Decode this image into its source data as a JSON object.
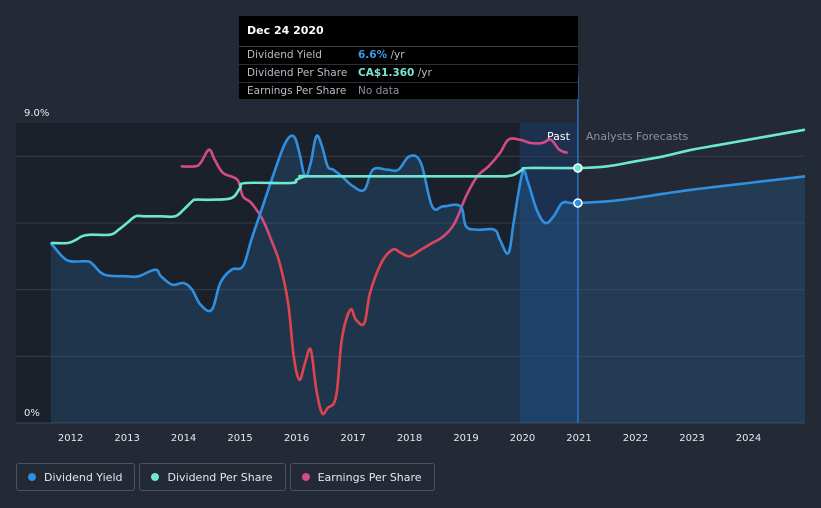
{
  "tooltip": {
    "date": "Dec 24 2020",
    "rows": [
      {
        "name": "Dividend Yield",
        "value": "6.6%",
        "unit": " /yr",
        "color": "#3b9be8"
      },
      {
        "name": "Dividend Per Share",
        "value": "CA$1.360",
        "unit": " /yr",
        "color": "#7de8d4"
      },
      {
        "name": "Earnings Per Share",
        "value": "No data",
        "unit": "",
        "color": "#8b939e"
      }
    ]
  },
  "colors": {
    "background": "#232a35",
    "yield": "#2f8fe0",
    "dps": "#6ee7cf",
    "eps": "#d24b86",
    "eps_negative": "#e0434d",
    "grid": "#343b47"
  },
  "chart_data": {
    "type": "line",
    "ylim": [
      0,
      9.0
    ],
    "ytick_labels": [
      "9.0%",
      "0%"
    ],
    "xlim": [
      2011.6,
      2025.0
    ],
    "x_tick_labels": [
      "2012",
      "2013",
      "2014",
      "2015",
      "2016",
      "2017",
      "2018",
      "2019",
      "2020",
      "2021",
      "2022",
      "2023",
      "2024"
    ],
    "segment_labels": {
      "past": "Past",
      "forecast": "Analysts Forecasts"
    },
    "forecast_start": 2020.98,
    "highlight_start": 2019.95,
    "series": [
      {
        "name": "Dividend Yield",
        "unit": "%",
        "x": [
          2011.65,
          2011.85,
          2012.0,
          2012.3,
          2012.4,
          2012.6,
          2013.0,
          2013.2,
          2013.5,
          2013.6,
          2013.8,
          2014.0,
          2014.15,
          2014.3,
          2014.5,
          2014.65,
          2014.85,
          2015.05,
          2015.2,
          2015.4,
          2015.6,
          2015.8,
          2015.95,
          2016.05,
          2016.15,
          2016.25,
          2016.35,
          2016.45,
          2016.55,
          2016.65,
          2016.8,
          2017.0,
          2017.2,
          2017.35,
          2017.6,
          2017.8,
          2018.0,
          2018.2,
          2018.4,
          2018.6,
          2018.9,
          2019.0,
          2019.2,
          2019.5,
          2019.6,
          2019.75,
          2019.85,
          2020.0,
          2020.1,
          2020.25,
          2020.4,
          2020.55,
          2020.7,
          2020.85,
          2020.98,
          2021.5,
          2022.0,
          2022.5,
          2023.0,
          2023.5,
          2024.0,
          2024.5,
          2025.0
        ],
        "values": [
          5.4,
          5.0,
          4.85,
          4.85,
          4.75,
          4.45,
          4.4,
          4.4,
          4.6,
          4.4,
          4.15,
          4.2,
          4.0,
          3.55,
          3.4,
          4.2,
          4.6,
          4.7,
          5.5,
          6.5,
          7.5,
          8.4,
          8.6,
          8.1,
          7.4,
          7.8,
          8.6,
          8.3,
          7.7,
          7.6,
          7.4,
          7.1,
          7.0,
          7.6,
          7.6,
          7.6,
          8.0,
          7.8,
          6.5,
          6.5,
          6.5,
          5.9,
          5.8,
          5.8,
          5.5,
          5.1,
          6.1,
          7.5,
          7.2,
          6.4,
          6.0,
          6.2,
          6.6,
          6.6,
          6.6,
          6.65,
          6.75,
          6.88,
          7.0,
          7.1,
          7.2,
          7.3,
          7.4
        ]
      },
      {
        "name": "Dividend Per Share",
        "unit": "%",
        "x": [
          2011.65,
          2011.95,
          2012.1,
          2012.2,
          2012.35,
          2012.7,
          2012.85,
          2013.0,
          2013.15,
          2013.3,
          2013.6,
          2013.85,
          2014.0,
          2014.15,
          2014.2,
          2014.35,
          2014.5,
          2014.85,
          2015.0,
          2015.1,
          2015.9,
          2016.0,
          2016.15,
          2016.3,
          2018.9,
          2019.6,
          2019.7,
          2019.85,
          2020.0,
          2020.1,
          2020.98,
          2021.5,
          2022.0,
          2022.5,
          2023.0,
          2023.5,
          2024.0,
          2024.5,
          2025.0
        ],
        "values": [
          5.4,
          5.4,
          5.5,
          5.6,
          5.65,
          5.65,
          5.8,
          6.0,
          6.2,
          6.2,
          6.2,
          6.2,
          6.4,
          6.65,
          6.7,
          6.7,
          6.7,
          6.75,
          7.05,
          7.2,
          7.2,
          7.3,
          7.4,
          7.4,
          7.4,
          7.4,
          7.4,
          7.45,
          7.6,
          7.65,
          7.65,
          7.7,
          7.85,
          8.0,
          8.2,
          8.35,
          8.5,
          8.65,
          8.8
        ]
      },
      {
        "name": "Earnings Per Share",
        "unit": "%",
        "x": [
          2013.95,
          2014.2,
          2014.3,
          2014.45,
          2014.55,
          2014.7,
          2014.95,
          2015.05,
          2015.2,
          2015.4,
          2015.55,
          2015.7,
          2015.85,
          2015.95,
          2016.05,
          2016.15,
          2016.25,
          2016.35,
          2016.45,
          2016.55,
          2016.7,
          2016.8,
          2016.95,
          2017.05,
          2017.2,
          2017.3,
          2017.5,
          2017.7,
          2017.85,
          2018.0,
          2018.2,
          2018.4,
          2018.6,
          2018.8,
          2019.0,
          2019.2,
          2019.4,
          2019.6,
          2019.75,
          2019.95,
          2020.15,
          2020.35,
          2020.5,
          2020.65,
          2020.8
        ],
        "values": [
          7.7,
          7.7,
          7.8,
          8.2,
          7.9,
          7.5,
          7.3,
          6.8,
          6.6,
          6.1,
          5.5,
          4.8,
          3.6,
          2.0,
          1.3,
          1.8,
          2.2,
          1.0,
          0.3,
          0.45,
          0.8,
          2.5,
          3.4,
          3.1,
          3.0,
          3.9,
          4.8,
          5.2,
          5.1,
          5.0,
          5.2,
          5.4,
          5.6,
          6.0,
          6.8,
          7.4,
          7.7,
          8.1,
          8.5,
          8.5,
          8.4,
          8.4,
          8.5,
          8.2,
          8.1
        ]
      }
    ]
  },
  "legend": [
    {
      "label": "Dividend Yield",
      "color": "#2f8fe0"
    },
    {
      "label": "Dividend Per Share",
      "color": "#6ee7cf"
    },
    {
      "label": "Earnings Per Share",
      "color": "#d24b86"
    }
  ]
}
